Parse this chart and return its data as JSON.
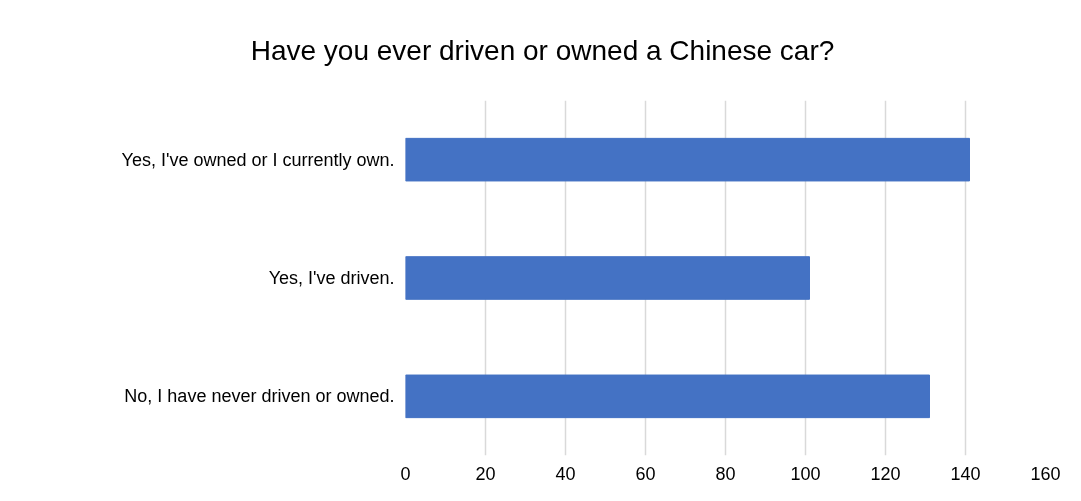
{
  "chart_data": {
    "type": "bar",
    "orientation": "horizontal",
    "title": "Have you ever driven or owned a Chinese car?",
    "categories": [
      "Yes, I've owned or I currently own.",
      "Yes, I've driven.",
      "No, I have never driven or owned."
    ],
    "values": [
      141,
      101,
      131
    ],
    "color": "#4472c4",
    "xlim": [
      0,
      160
    ],
    "xticks": [
      0,
      20,
      40,
      60,
      80,
      100,
      120,
      140,
      160
    ],
    "grid": "x"
  }
}
